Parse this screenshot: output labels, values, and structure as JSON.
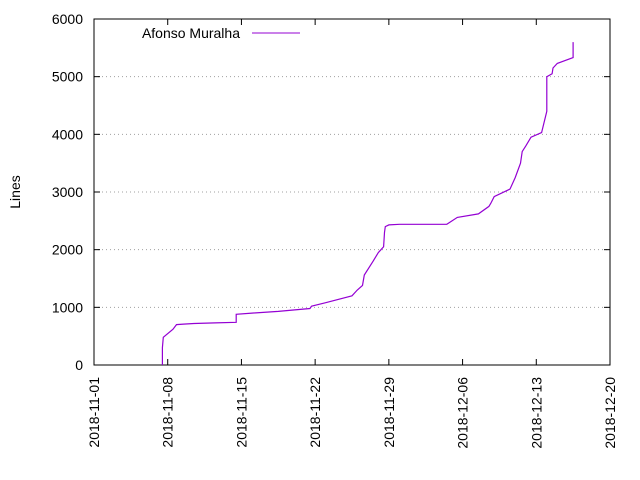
{
  "chart_data": {
    "type": "line",
    "ylabel": "Lines",
    "xlabel": "",
    "ylim": [
      0,
      6000
    ],
    "yticks": [
      0,
      1000,
      2000,
      3000,
      4000,
      5000,
      6000
    ],
    "xlim": [
      "2018-11-01",
      "2018-12-20"
    ],
    "xticks": [
      "2018-11-01",
      "2018-11-08",
      "2018-11-15",
      "2018-11-22",
      "2018-11-29",
      "2018-12-06",
      "2018-12-13",
      "2018-12-20"
    ],
    "grid": "horizontal-dotted",
    "legend_position": "top-left",
    "series": [
      {
        "name": "Afonso Muralha",
        "color": "#9400d3",
        "x": [
          "2018-11-07T12:00",
          "2018-11-07T12:00",
          "2018-11-07T14:00",
          "2018-11-08T12:00",
          "2018-11-08T20:00",
          "2018-11-09T12:00",
          "2018-11-10T12:00",
          "2018-11-12T12:00",
          "2018-11-14T12:00",
          "2018-11-14T12:00",
          "2018-11-16T00:00",
          "2018-11-18T12:00",
          "2018-11-21T12:00",
          "2018-11-21T16:00",
          "2018-11-23T00:00",
          "2018-11-25T12:00",
          "2018-11-26T00:00",
          "2018-11-26T12:00",
          "2018-11-26T16:00",
          "2018-11-27T12:00",
          "2018-11-28T00:00",
          "2018-11-28T12:00",
          "2018-11-28T14:00",
          "2018-11-28T16:00",
          "2018-11-29T00:00",
          "2018-11-30T00:00",
          "2018-12-03T00:00",
          "2018-12-04T12:00",
          "2018-12-05T12:00",
          "2018-12-07T12:00",
          "2018-12-08T12:00",
          "2018-12-08T16:00",
          "2018-12-09T00:00",
          "2018-12-10T12:00",
          "2018-12-11T00:00",
          "2018-12-11T12:00",
          "2018-12-11T16:00",
          "2018-12-12T00:00",
          "2018-12-12T12:00",
          "2018-12-13T12:00",
          "2018-12-14T00:00",
          "2018-12-14T00:00",
          "2018-12-14T12:00",
          "2018-12-14T14:00",
          "2018-12-15T00:00",
          "2018-12-16T12:00",
          "2018-12-16T12:00"
        ],
        "y": [
          0,
          300,
          480,
          620,
          700,
          710,
          720,
          730,
          740,
          880,
          900,
          930,
          980,
          1020,
          1080,
          1200,
          1300,
          1380,
          1560,
          1800,
          1950,
          2050,
          2300,
          2400,
          2430,
          2440,
          2440,
          2440,
          2560,
          2620,
          2750,
          2800,
          2920,
          3050,
          3250,
          3500,
          3700,
          3800,
          3950,
          4030,
          4400,
          5000,
          5050,
          5150,
          5230,
          5330,
          5600
        ]
      }
    ]
  }
}
